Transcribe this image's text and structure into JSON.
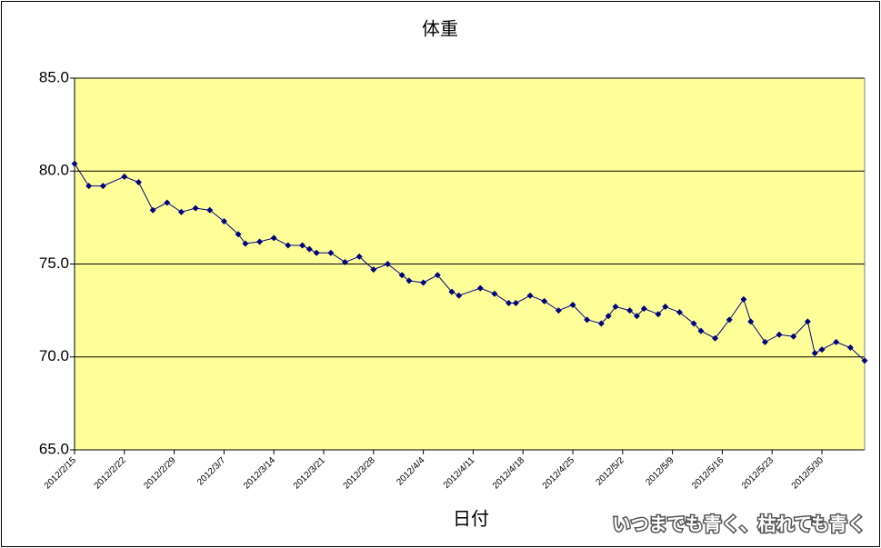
{
  "chart_data": {
    "type": "line",
    "title": "体重",
    "x_label": "日付",
    "watermark": "いつまでも青く、枯れても青く",
    "x": [
      "2012/2/15",
      "2012/2/17",
      "2012/2/19",
      "2012/2/22",
      "2012/2/24",
      "2012/2/26",
      "2012/2/28",
      "2012/3/1",
      "2012/3/3",
      "2012/3/5",
      "2012/3/7",
      "2012/3/9",
      "2012/3/10",
      "2012/3/12",
      "2012/3/14",
      "2012/3/16",
      "2012/3/18",
      "2012/3/19",
      "2012/3/20",
      "2012/3/22",
      "2012/3/24",
      "2012/3/26",
      "2012/3/28",
      "2012/3/30",
      "2012/4/1",
      "2012/4/2",
      "2012/4/4",
      "2012/4/6",
      "2012/4/8",
      "2012/4/9",
      "2012/4/12",
      "2012/4/14",
      "2012/4/16",
      "2012/4/17",
      "2012/4/19",
      "2012/4/21",
      "2012/4/23",
      "2012/4/25",
      "2012/4/27",
      "2012/4/29",
      "2012/4/30",
      "2012/5/1",
      "2012/5/3",
      "2012/5/4",
      "2012/5/5",
      "2012/5/7",
      "2012/5/8",
      "2012/5/10",
      "2012/5/12",
      "2012/5/13",
      "2012/5/15",
      "2012/5/17",
      "2012/5/19",
      "2012/5/20",
      "2012/5/22",
      "2012/5/24",
      "2012/5/26",
      "2012/5/28",
      "2012/5/29",
      "2012/5/30",
      "2012/6/1",
      "2012/6/3",
      "2012/6/5"
    ],
    "series": [
      {
        "color": "#000080",
        "values": [
          80.4,
          79.2,
          79.2,
          79.7,
          79.4,
          77.9,
          78.3,
          77.8,
          78.0,
          77.9,
          77.3,
          76.6,
          76.1,
          76.2,
          76.4,
          76.0,
          76.0,
          75.8,
          75.6,
          75.6,
          75.1,
          75.4,
          74.7,
          75.0,
          74.4,
          74.1,
          74.0,
          74.4,
          73.5,
          73.3,
          73.7,
          73.4,
          72.9,
          72.9,
          73.3,
          73.0,
          72.5,
          72.8,
          72.0,
          71.8,
          72.2,
          72.7,
          72.5,
          72.2,
          72.6,
          72.3,
          72.7,
          72.4,
          71.8,
          71.4,
          71.0,
          72.0,
          73.1,
          71.9,
          70.8,
          71.2,
          71.1,
          71.9,
          70.2,
          70.4,
          70.8,
          70.5,
          69.8
        ]
      }
    ],
    "xlim": [
      "2012/2/15",
      "2012/6/5"
    ],
    "xticks": [
      "2012/2/15",
      "2012/2/22",
      "2012/2/29",
      "2012/3/7",
      "2012/3/14",
      "2012/3/21",
      "2012/3/28",
      "2012/4/4",
      "2012/4/11",
      "2012/4/18",
      "2012/4/25",
      "2012/5/2",
      "2012/5/9",
      "2012/5/16",
      "2012/5/23",
      "2012/5/30"
    ],
    "ylim": [
      65,
      85
    ],
    "yticks": [
      {
        "value": 65,
        "label": "65.0"
      },
      {
        "value": 70,
        "label": "70.0"
      },
      {
        "value": 75,
        "label": "75.0"
      },
      {
        "value": 80,
        "label": "80.0"
      },
      {
        "value": 85,
        "label": "85.0"
      }
    ],
    "grid": true,
    "plot_background": "#ffff99"
  }
}
